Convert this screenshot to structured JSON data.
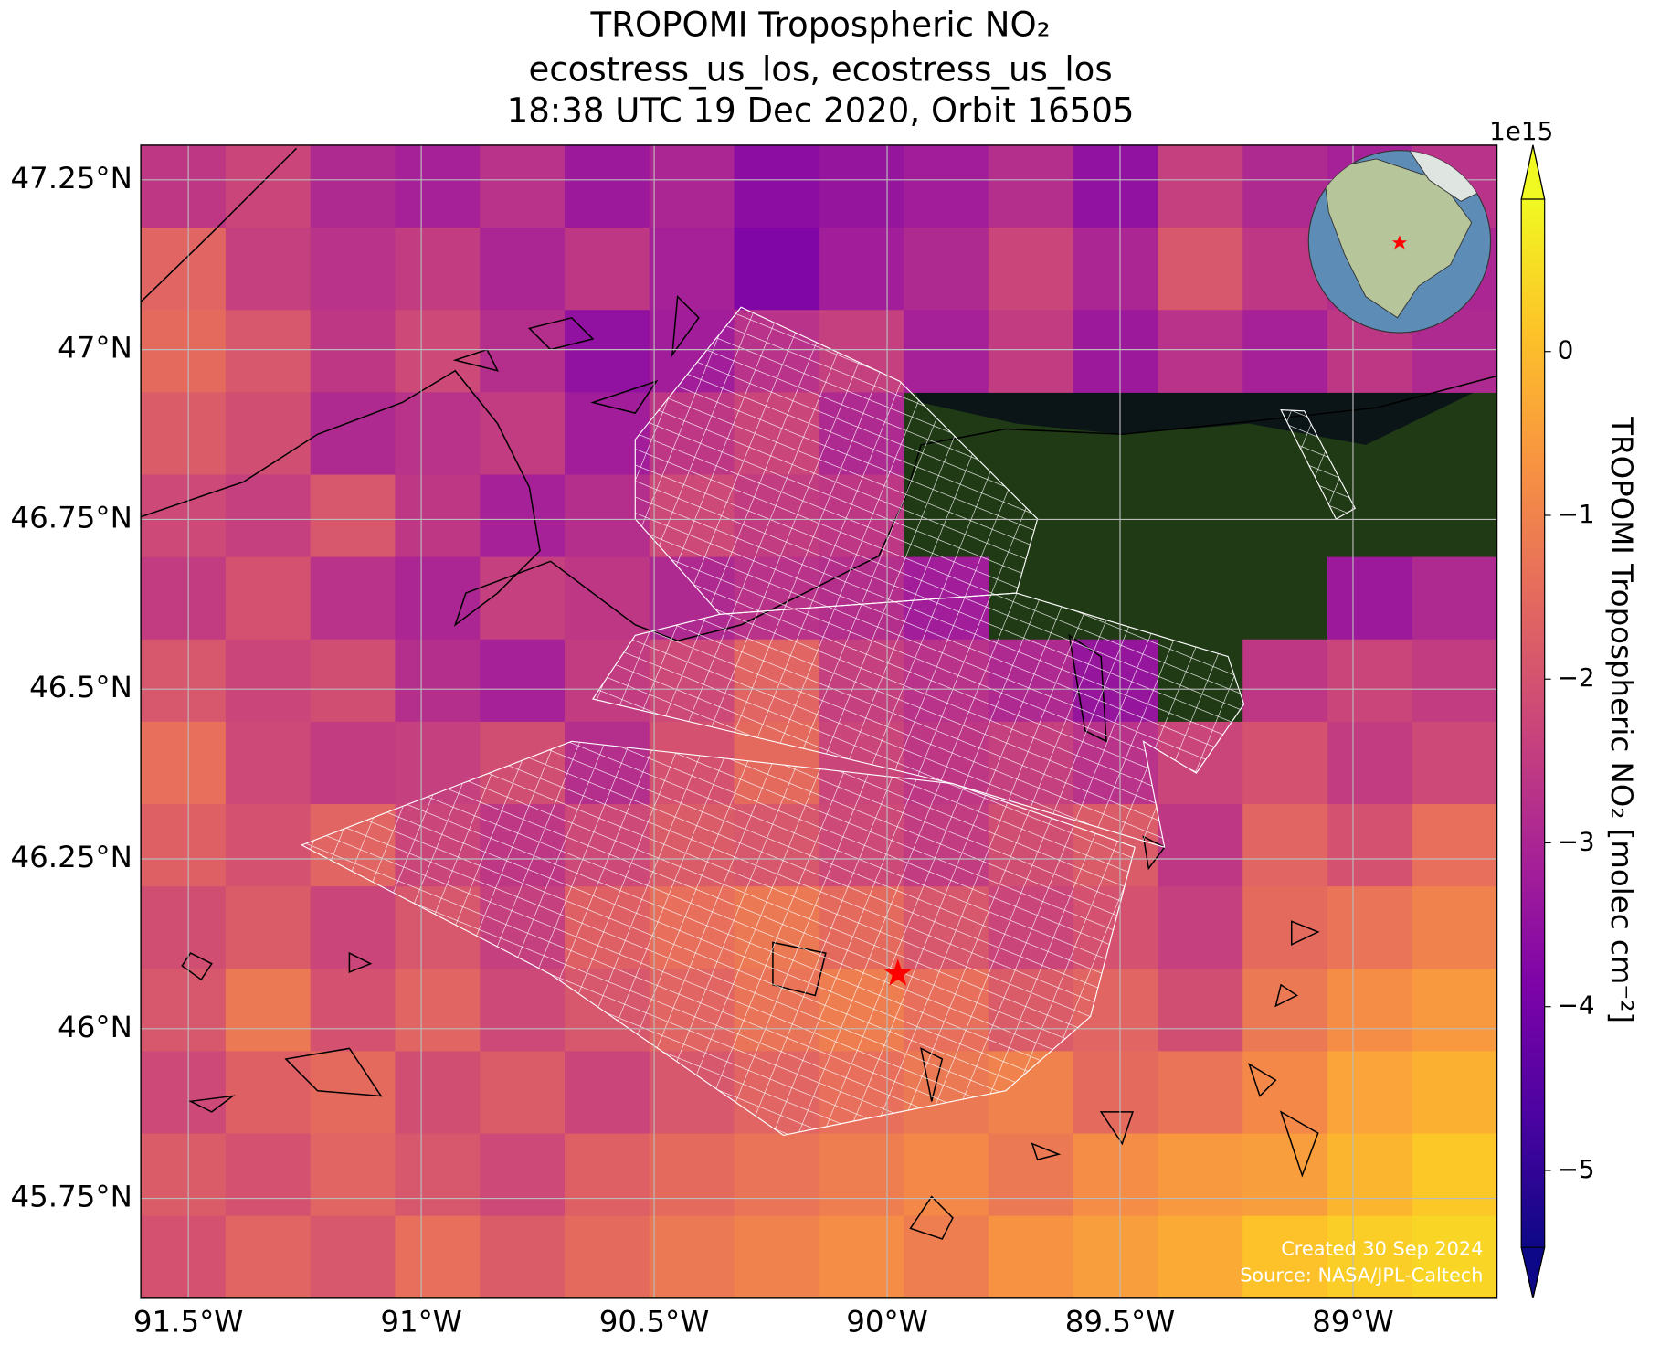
{
  "chart_data": {
    "type": "map",
    "title": "TROPOMI Tropospheric NO₂",
    "subtitle": [
      "ecostress_us_los, ecostress_us_los",
      "18:38 UTC 19 Dec 2020, Orbit 16505"
    ],
    "xlim": [
      -91.602,
      -88.691
    ],
    "ylim": [
      45.603,
      47.301
    ],
    "xticks": [
      {
        "value": -91.5,
        "label": "91.5°W"
      },
      {
        "value": -91,
        "label": "91°W"
      },
      {
        "value": -90.5,
        "label": "90.5°W"
      },
      {
        "value": -90,
        "label": "90°W"
      },
      {
        "value": -89.5,
        "label": "89.5°W"
      },
      {
        "value": -89,
        "label": "89°W"
      }
    ],
    "yticks": [
      {
        "value": 45.75,
        "label": "45.75°N"
      },
      {
        "value": 46,
        "label": "46°N"
      },
      {
        "value": 46.25,
        "label": "46.25°N"
      },
      {
        "value": 46.5,
        "label": "46.5°N"
      },
      {
        "value": 46.75,
        "label": "46.75°N"
      },
      {
        "value": 47,
        "label": "47°N"
      },
      {
        "value": 47.25,
        "label": "47.25°N"
      }
    ],
    "grid": true,
    "colormap": "plasma",
    "clim": [
      -5.47,
      0.93
    ],
    "cticks": [
      {
        "value": -5,
        "label": "−5"
      },
      {
        "value": -4,
        "label": "−4"
      },
      {
        "value": -3,
        "label": "−3"
      },
      {
        "value": -2,
        "label": "−2"
      },
      {
        "value": -1,
        "label": "−1"
      },
      0
    ],
    "colorbar_exponent": "1e15",
    "colorbar_label": "TROPOMI Tropospheric NO₂ [molec cm⁻²]",
    "values": [
      [
        -2.6,
        -2.3,
        -2.9,
        -3.1,
        -2.7,
        -3.3,
        -3.0,
        -3.6,
        -3.4,
        -3.2,
        -2.8,
        -3.5,
        -2.4,
        -2.9,
        -3.1,
        -2.7
      ],
      [
        -1.6,
        -2.4,
        -2.7,
        -2.5,
        -3.0,
        -2.6,
        -3.1,
        -3.8,
        -3.2,
        -2.9,
        -2.3,
        -3.0,
        -1.9,
        -2.6,
        -2.8,
        -3.0
      ],
      [
        -1.5,
        -1.9,
        -2.6,
        -2.2,
        -2.8,
        -3.5,
        -3.2,
        -2.7,
        -2.4,
        -3.1,
        -2.5,
        -3.3,
        -2.7,
        -3.1,
        -2.6,
        -2.9
      ],
      [
        -1.8,
        -2.1,
        -2.9,
        -2.7,
        -2.5,
        -3.2,
        -2.6,
        -2.3,
        -2.9,
        null,
        null,
        null,
        null,
        null,
        null,
        null
      ],
      [
        -2.2,
        -2.4,
        -1.9,
        -2.6,
        -3.1,
        -2.8,
        -2.2,
        -2.5,
        -2.6,
        null,
        null,
        null,
        null,
        null,
        null,
        null
      ],
      [
        -2.5,
        -2.0,
        -2.7,
        -3.0,
        -2.4,
        -2.6,
        -2.9,
        -2.7,
        -2.8,
        -3.2,
        null,
        null,
        null,
        null,
        -3.3,
        -2.9
      ],
      [
        -1.9,
        -2.3,
        -2.1,
        -2.8,
        -3.1,
        -2.5,
        -2.2,
        -1.6,
        -2.4,
        -2.7,
        -2.9,
        -3.4,
        null,
        -2.6,
        -2.3,
        -2.5
      ],
      [
        -1.4,
        -2.2,
        -2.5,
        -2.4,
        -2.1,
        -2.8,
        -2.0,
        -1.5,
        -2.3,
        -2.6,
        -2.4,
        -2.7,
        -2.3,
        -2.0,
        -2.5,
        -2.2
      ],
      [
        -1.7,
        -2.0,
        -1.6,
        -2.3,
        -2.6,
        -2.2,
        -1.8,
        -1.9,
        -2.2,
        -2.5,
        -2.1,
        -1.8,
        -2.6,
        -1.6,
        -2.0,
        -1.4
      ],
      [
        -2.1,
        -1.8,
        -2.3,
        -1.9,
        -2.4,
        -1.7,
        -1.4,
        -1.2,
        -1.5,
        -1.9,
        -2.3,
        -2.0,
        -2.4,
        -1.5,
        -1.3,
        -1.0
      ],
      [
        -1.9,
        -1.2,
        -2.0,
        -1.6,
        -2.2,
        -1.9,
        -1.6,
        -1.3,
        -1.1,
        -1.4,
        -1.8,
        -1.6,
        -2.1,
        -1.2,
        -0.8,
        -0.6
      ],
      [
        -2.2,
        -1.7,
        -1.5,
        -2.1,
        -1.8,
        -2.3,
        -1.9,
        -1.6,
        -1.4,
        -1.2,
        -1.0,
        -1.5,
        -1.3,
        -0.9,
        -0.4,
        -0.2
      ],
      [
        -1.8,
        -2.0,
        -1.6,
        -1.9,
        -2.2,
        -1.7,
        -1.5,
        -1.3,
        -1.1,
        -0.9,
        -1.2,
        -0.8,
        -0.6,
        -0.5,
        -0.1,
        0.2
      ],
      [
        -2.0,
        -1.6,
        -1.9,
        -1.4,
        -1.8,
        -1.5,
        -1.2,
        -1.0,
        -0.8,
        -1.1,
        -0.7,
        -0.5,
        -0.3,
        0.1,
        0.3,
        0.4
      ]
    ],
    "marker": {
      "lon": -89.977,
      "lat": 46.081
    },
    "credits": [
      "Created 30 Sep 2024",
      "Source: NASA/JPL-Caltech"
    ]
  }
}
